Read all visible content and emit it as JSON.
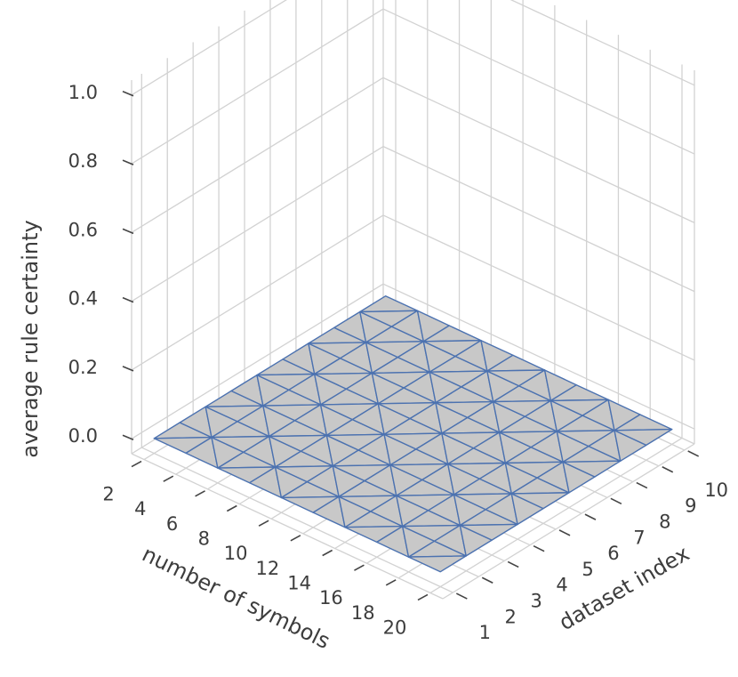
{
  "chart_data": {
    "type": "surface3d",
    "x": {
      "label": "dataset index",
      "range": [
        1,
        10
      ],
      "ticks": [
        1,
        2,
        3,
        4,
        5,
        6,
        7,
        8,
        9,
        10
      ]
    },
    "y": {
      "label": "number of symbols",
      "range": [
        2,
        20
      ],
      "ticks": [
        2,
        4,
        6,
        8,
        10,
        12,
        14,
        16,
        18,
        20
      ]
    },
    "z": {
      "label": "average rule certainty",
      "range": [
        0,
        1
      ],
      "ticks": [
        "0.0",
        "0.2",
        "0.4",
        "0.6",
        "0.8",
        "1.0"
      ]
    },
    "surface": {
      "x_values": [
        1,
        2,
        3,
        4,
        5,
        6,
        7,
        8,
        9,
        10
      ],
      "y_values": [
        2,
        4,
        6,
        8,
        10,
        12,
        14,
        16,
        18,
        20
      ],
      "z_value": 0.0,
      "face_color": "#c8c8c8",
      "edge_color": "#4c72b0"
    },
    "grid": true,
    "pane_color": "#ffffff",
    "grid_color": "#d2d2d2"
  }
}
